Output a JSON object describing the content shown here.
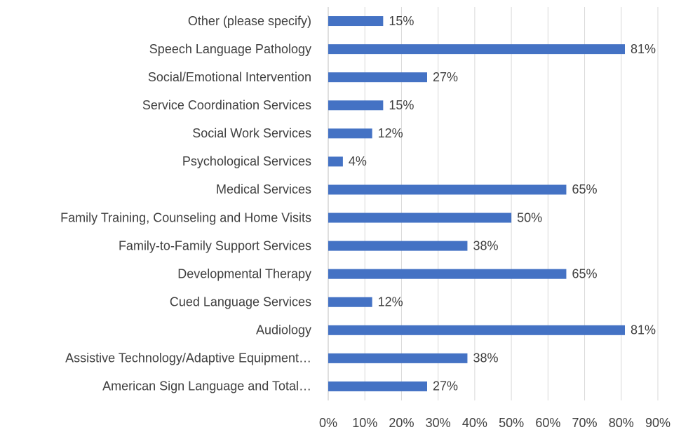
{
  "chart_data": {
    "type": "bar",
    "orientation": "horizontal",
    "categories": [
      "Other (please specify)",
      "Speech Language Pathology",
      "Social/Emotional Intervention",
      "Service Coordination Services",
      "Social Work Services",
      "Psychological Services",
      "Medical Services",
      "Family Training, Counseling and Home Visits",
      "Family-to-Family Support Services",
      "Developmental Therapy",
      "Cued Language Services",
      "Audiology",
      "Assistive Technology/Adaptive Equipment…",
      "American Sign Language and Total…"
    ],
    "values": [
      15,
      81,
      27,
      15,
      12,
      4,
      65,
      50,
      38,
      65,
      12,
      81,
      38,
      27
    ],
    "value_labels": [
      "15%",
      "81%",
      "27%",
      "15%",
      "12%",
      "4%",
      "65%",
      "50%",
      "38%",
      "65%",
      "12%",
      "81%",
      "38%",
      "27%"
    ],
    "color": "#4472c4",
    "xlim": [
      0,
      90
    ],
    "xticks": [
      {
        "value": 0,
        "label": "0%"
      },
      {
        "value": 10,
        "label": "10%"
      },
      {
        "value": 20,
        "label": "20%"
      },
      {
        "value": 30,
        "label": "30%"
      },
      {
        "value": 40,
        "label": "40%"
      },
      {
        "value": 50,
        "label": "50%"
      },
      {
        "value": 60,
        "label": "60%"
      },
      {
        "value": 70,
        "label": "70%"
      },
      {
        "value": 80,
        "label": "80%"
      },
      {
        "value": 90,
        "label": "90%"
      }
    ],
    "grid": true
  }
}
